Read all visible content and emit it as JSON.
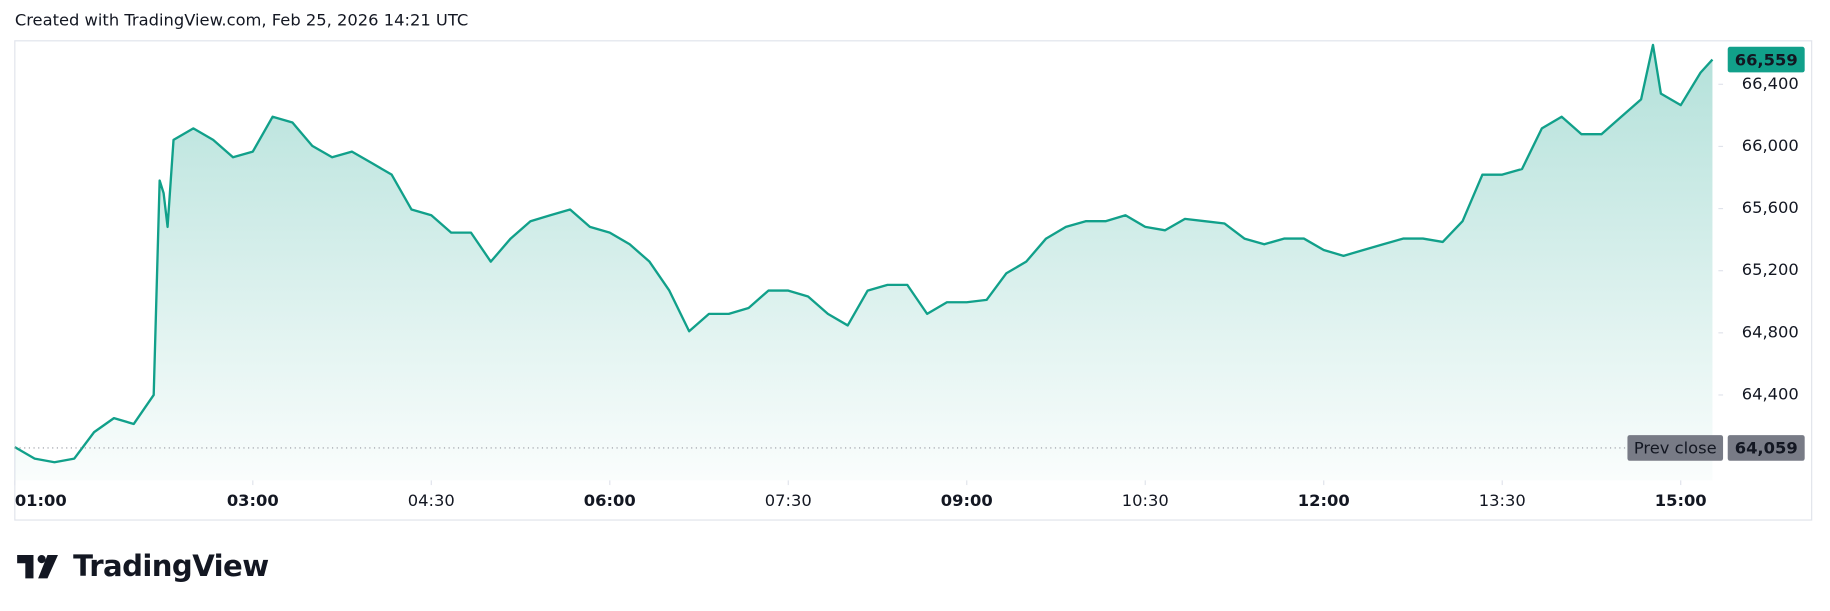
{
  "header": "Created with TradingView.com, Feb 25, 2026 14:21 UTC",
  "brand": "TradingView",
  "chart_data": {
    "type": "area",
    "color": "#11a08a",
    "x": [
      "01:00",
      "01:10",
      "01:20",
      "01:30",
      "01:40",
      "01:50",
      "02:00",
      "02:10",
      "02:13",
      "02:15",
      "02:17",
      "02:20",
      "02:30",
      "02:40",
      "02:50",
      "03:00",
      "03:10",
      "03:20",
      "03:30",
      "03:40",
      "03:50",
      "04:00",
      "04:10",
      "04:20",
      "04:30",
      "04:40",
      "04:50",
      "05:00",
      "05:10",
      "05:20",
      "05:30",
      "05:40",
      "05:50",
      "06:00",
      "06:10",
      "06:20",
      "06:30",
      "06:40",
      "06:50",
      "07:00",
      "07:10",
      "07:20",
      "07:30",
      "07:40",
      "07:50",
      "08:00",
      "08:10",
      "08:20",
      "08:30",
      "08:40",
      "08:50",
      "09:00",
      "09:10",
      "09:20",
      "09:30",
      "09:40",
      "09:50",
      "10:00",
      "10:10",
      "10:20",
      "10:30",
      "10:40",
      "10:50",
      "11:00",
      "11:10",
      "11:20",
      "11:30",
      "11:40",
      "11:50",
      "12:00",
      "12:10",
      "12:20",
      "12:30",
      "12:40",
      "12:50",
      "13:00",
      "13:10",
      "13:20",
      "13:30",
      "13:40",
      "13:50",
      "14:00",
      "14:10",
      "14:20",
      "14:30",
      "14:40",
      "14:46",
      "14:50",
      "15:00",
      "15:10",
      "15:16"
    ],
    "values": [
      64064,
      63990,
      63967,
      63990,
      64161,
      64251,
      64213,
      64400,
      65781,
      65700,
      65482,
      66042,
      66116,
      66042,
      65930,
      65967,
      66191,
      66154,
      66004,
      65930,
      65967,
      65893,
      65818,
      65594,
      65557,
      65445,
      65445,
      65258,
      65407,
      65519,
      65557,
      65594,
      65482,
      65445,
      65370,
      65258,
      65072,
      64810,
      64922,
      64922,
      64960,
      65072,
      65072,
      65034,
      64922,
      64848,
      65072,
      65109,
      65109,
      64922,
      64997,
      64997,
      65012,
      65184,
      65258,
      65407,
      65482,
      65519,
      65519,
      65557,
      65482,
      65460,
      65534,
      65519,
      65504,
      65407,
      65370,
      65407,
      65407,
      65333,
      65296,
      65333,
      65370,
      65407,
      65407,
      65385,
      65519,
      65818,
      65818,
      65855,
      66116,
      66191,
      66079,
      66079,
      66191,
      66303,
      66654,
      66340,
      66266,
      66475,
      66559
    ],
    "xlim": [
      "01:00",
      "15:19"
    ],
    "xticks": [
      "01:00",
      "03:00",
      "04:30",
      "06:00",
      "07:30",
      "09:00",
      "10:30",
      "12:00",
      "13:30",
      "15:00"
    ],
    "ylim": [
      63850,
      66680
    ],
    "yticks": [
      {
        "value": 64400,
        "label": "64,400"
      },
      {
        "value": 64800,
        "label": "64,800"
      },
      {
        "value": 65200,
        "label": "65,200"
      },
      {
        "value": 65600,
        "label": "65,600"
      },
      {
        "value": 66000,
        "label": "66,000"
      },
      {
        "value": 66400,
        "label": "66,400"
      }
    ],
    "last_price": {
      "value": 66559,
      "label": "66,559"
    },
    "prev_close": {
      "name": "Prev close",
      "value": 64059,
      "label": "64,059"
    }
  }
}
